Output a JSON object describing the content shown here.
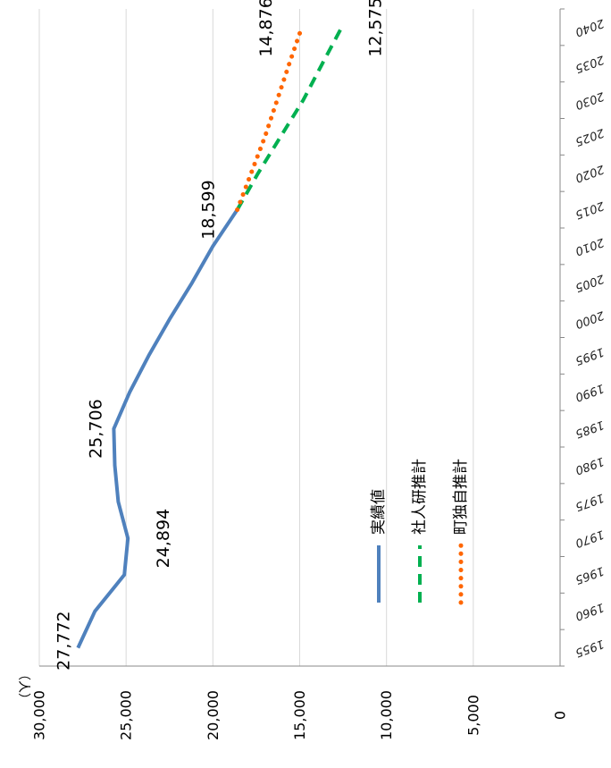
{
  "chart_data": {
    "type": "line",
    "unit_label": "（人）",
    "ylim": [
      0,
      30000
    ],
    "y_ticks": [
      {
        "value": 0,
        "label": "0"
      },
      {
        "value": 5000,
        "label": "5,000"
      },
      {
        "value": 10000,
        "label": "10,000"
      },
      {
        "value": 15000,
        "label": "15,000"
      },
      {
        "value": 20000,
        "label": "20,000"
      },
      {
        "value": 25000,
        "label": "25,000"
      },
      {
        "value": 30000,
        "label": "30,000"
      }
    ],
    "categories": [
      "1955",
      "1960",
      "1965",
      "1970",
      "1975",
      "1980",
      "1985",
      "1990",
      "1995",
      "2000",
      "2005",
      "2010",
      "2015",
      "2020",
      "2025",
      "2030",
      "2035",
      "2040"
    ],
    "grid": true,
    "legend_position": "inside, lower right",
    "series": [
      {
        "name": "実績値",
        "color": "#4F81BD",
        "style": "solid",
        "values": [
          27772,
          26800,
          25100,
          24894,
          25450,
          25650,
          25706,
          24800,
          23700,
          22500,
          21200,
          20000,
          18599,
          null,
          null,
          null,
          null,
          null
        ]
      },
      {
        "name": "社人研推計",
        "color": "#00B050",
        "style": "dashed",
        "values": [
          null,
          null,
          null,
          null,
          null,
          null,
          null,
          null,
          null,
          null,
          null,
          null,
          18599,
          17400,
          16100,
          14800,
          13700,
          12575
        ]
      },
      {
        "name": "町独自推計",
        "color": "#FF6600",
        "style": "dotted",
        "values": [
          null,
          null,
          null,
          null,
          null,
          null,
          null,
          null,
          null,
          null,
          null,
          null,
          18599,
          17800,
          17000,
          16300,
          15600,
          14876
        ]
      }
    ],
    "data_labels": [
      {
        "series": 0,
        "index": 0,
        "text": "27,772"
      },
      {
        "series": 0,
        "index": 3,
        "text": "24,894"
      },
      {
        "series": 0,
        "index": 6,
        "text": "25,706"
      },
      {
        "series": 0,
        "index": 12,
        "text": "18,599"
      },
      {
        "series": 2,
        "index": 17,
        "text": "14,876"
      },
      {
        "series": 1,
        "index": 17,
        "text": "12,575"
      }
    ]
  }
}
